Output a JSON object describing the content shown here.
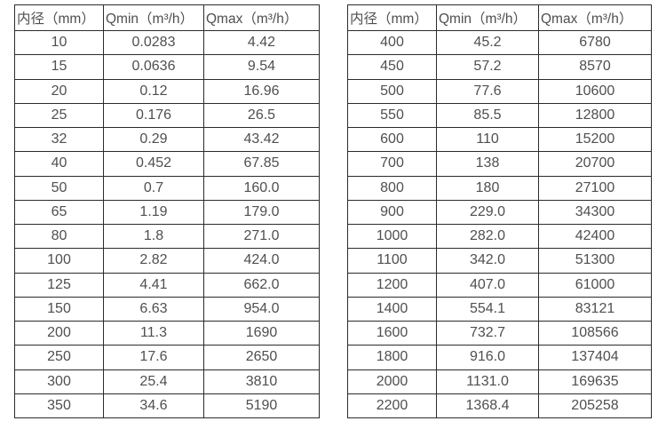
{
  "style": {
    "background": "#ffffff",
    "border_color": "#2b2b2b",
    "text_color": "#4f4f4f"
  },
  "chart_data": [
    {
      "type": "table",
      "headers": [
        "内径（mm）",
        "Qmin（m³/h）",
        "Qmax（m³/h）"
      ],
      "rows": [
        [
          "10",
          "0.0283",
          "4.42"
        ],
        [
          "15",
          "0.0636",
          "9.54"
        ],
        [
          "20",
          "0.12",
          "16.96"
        ],
        [
          "25",
          "0.176",
          "26.5"
        ],
        [
          "32",
          "0.29",
          "43.42"
        ],
        [
          "40",
          "0.452",
          "67.85"
        ],
        [
          "50",
          "0.7",
          "160.0"
        ],
        [
          "65",
          "1.19",
          "179.0"
        ],
        [
          "80",
          "1.8",
          "271.0"
        ],
        [
          "100",
          "2.82",
          "424.0"
        ],
        [
          "125",
          "4.41",
          "662.0"
        ],
        [
          "150",
          "6.63",
          "954.0"
        ],
        [
          "200",
          "11.3",
          "1690"
        ],
        [
          "250",
          "17.6",
          "2650"
        ],
        [
          "300",
          "25.4",
          "3810"
        ],
        [
          "350",
          "34.6",
          "5190"
        ]
      ]
    },
    {
      "type": "table",
      "headers": [
        "内径（mm）",
        "Qmin（m³/h）",
        "Qmax（m³/h）"
      ],
      "rows": [
        [
          "400",
          "45.2",
          "6780"
        ],
        [
          "450",
          "57.2",
          "8570"
        ],
        [
          "500",
          "77.6",
          "10600"
        ],
        [
          "550",
          "85.5",
          "12800"
        ],
        [
          "600",
          "110",
          "15200"
        ],
        [
          "700",
          "138",
          "20700"
        ],
        [
          "800",
          "180",
          "27100"
        ],
        [
          "900",
          "229.0",
          "34300"
        ],
        [
          "1000",
          "282.0",
          "42400"
        ],
        [
          "1100",
          "342.0",
          "51300"
        ],
        [
          "1200",
          "407.0",
          "61000"
        ],
        [
          "1400",
          "554.1",
          "83121"
        ],
        [
          "1600",
          "732.7",
          "108566"
        ],
        [
          "1800",
          "916.0",
          "137404"
        ],
        [
          "2000",
          "1131.0",
          "169635"
        ],
        [
          "2200",
          "1368.4",
          "205258"
        ]
      ]
    }
  ]
}
